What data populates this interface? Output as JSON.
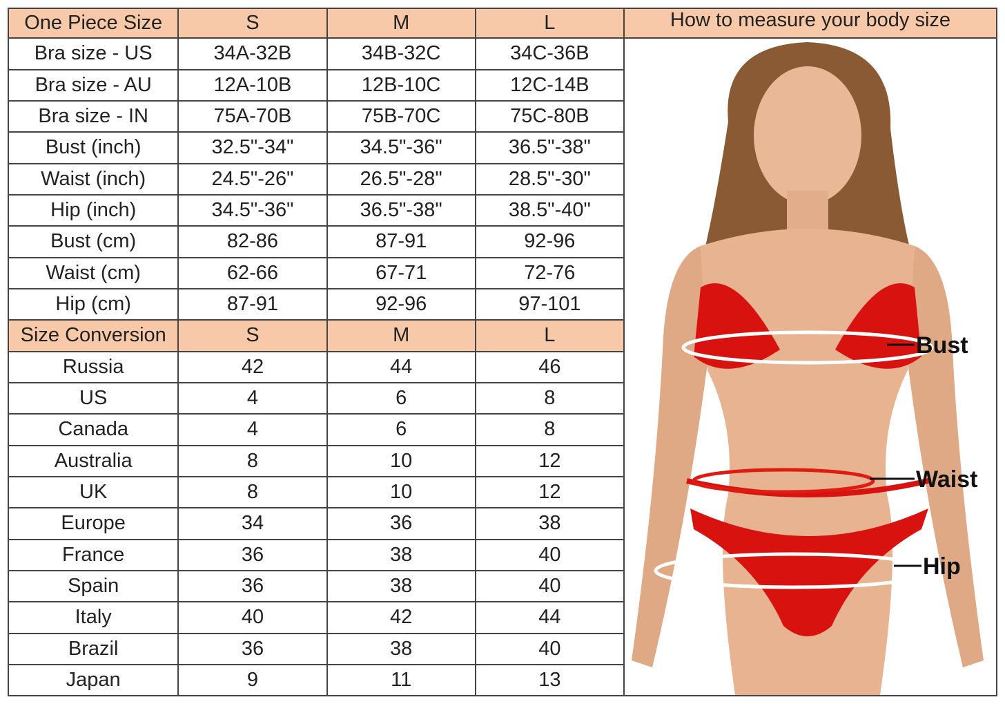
{
  "header": {
    "title": "One Piece Size",
    "sizes": [
      "S",
      "M",
      "L"
    ],
    "measure_title": "How to measure your body size"
  },
  "measure_rows": [
    {
      "label": "Bra size - US",
      "values": [
        "34A-32B",
        "34B-32C",
        "34C-36B"
      ]
    },
    {
      "label": "Bra size - AU",
      "values": [
        "12A-10B",
        "12B-10C",
        "12C-14B"
      ]
    },
    {
      "label": "Bra size - IN",
      "values": [
        "75A-70B",
        "75B-70C",
        "75C-80B"
      ]
    },
    {
      "label": "Bust (inch)",
      "values": [
        "32.5\"-34\"",
        "34.5\"-36\"",
        "36.5\"-38\""
      ]
    },
    {
      "label": "Waist (inch)",
      "values": [
        "24.5\"-26\"",
        "26.5\"-28\"",
        "28.5\"-30\""
      ]
    },
    {
      "label": "Hip (inch)",
      "values": [
        "34.5\"-36\"",
        "36.5\"-38\"",
        "38.5\"-40\""
      ]
    },
    {
      "label": "Bust (cm)",
      "values": [
        "82-86",
        "87-91",
        "92-96"
      ]
    },
    {
      "label": "Waist (cm)",
      "values": [
        "62-66",
        "67-71",
        "72-76"
      ]
    },
    {
      "label": "Hip (cm)",
      "values": [
        "87-91",
        "92-96",
        "97-101"
      ]
    }
  ],
  "conversion_header": {
    "title": "Size Conversion",
    "sizes": [
      "S",
      "M",
      "L"
    ]
  },
  "conversion_rows": [
    {
      "label": "Russia",
      "values": [
        "42",
        "44",
        "46"
      ]
    },
    {
      "label": "US",
      "values": [
        "4",
        "6",
        "8"
      ]
    },
    {
      "label": "Canada",
      "values": [
        "4",
        "6",
        "8"
      ]
    },
    {
      "label": "Australia",
      "values": [
        "8",
        "10",
        "12"
      ]
    },
    {
      "label": "UK",
      "values": [
        "8",
        "10",
        "12"
      ]
    },
    {
      "label": "Europe",
      "values": [
        "34",
        "36",
        "38"
      ]
    },
    {
      "label": "France",
      "values": [
        "36",
        "38",
        "40"
      ]
    },
    {
      "label": "Spain",
      "values": [
        "36",
        "38",
        "40"
      ]
    },
    {
      "label": "Italy",
      "values": [
        "40",
        "42",
        "44"
      ]
    },
    {
      "label": "Brazil",
      "values": [
        "36",
        "38",
        "40"
      ]
    },
    {
      "label": "Japan",
      "values": [
        "9",
        "11",
        "13"
      ]
    }
  ],
  "figure": {
    "labels": {
      "bust": "Bust",
      "waist": "Waist",
      "hip": "Hip"
    }
  },
  "colors": {
    "header_bg": "#f7c9a8",
    "bikini": "#d8120e",
    "border": "#444444"
  }
}
